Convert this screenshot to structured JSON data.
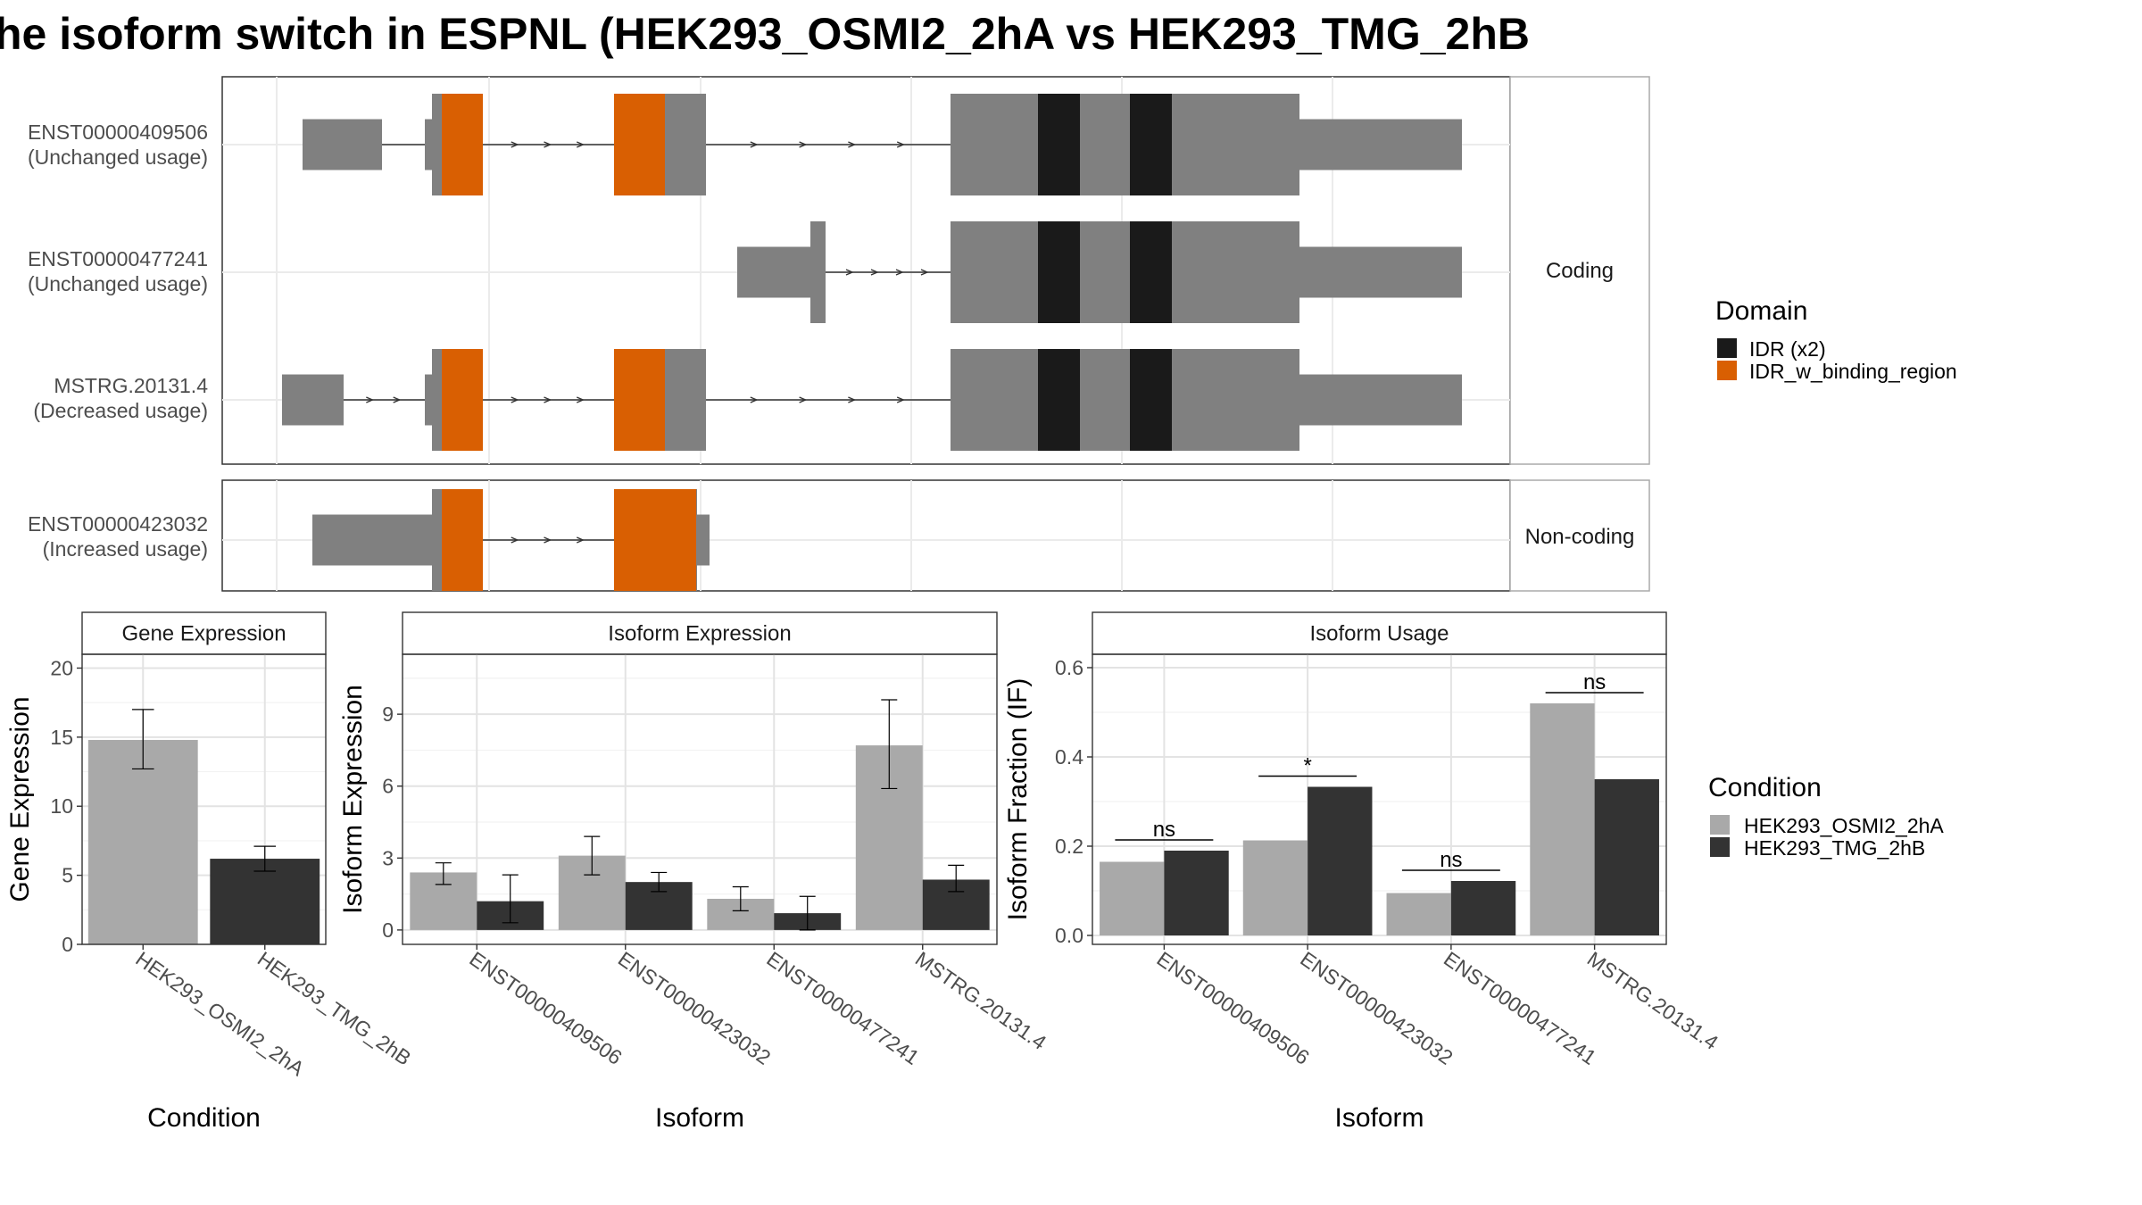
{
  "title": "he isoform switch in ESPNL (HEK293_OSMI2_2hA vs HEK293_TMG_2hB",
  "structure": {
    "facets": [
      {
        "label": "Coding",
        "rows": [
          {
            "id": "ENST00000409506",
            "usage": "(Unchanged usage)"
          },
          {
            "id": "ENST00000477241",
            "usage": "(Unchanged usage)"
          },
          {
            "id": "MSTRG.20131.4",
            "usage": "(Decreased usage)"
          }
        ]
      },
      {
        "label": "Non-coding",
        "rows": [
          {
            "id": "ENST00000423032",
            "usage": "(Increased usage)"
          }
        ]
      }
    ]
  },
  "legend_domain": {
    "title": "Domain",
    "items": [
      {
        "label": "IDR (x2)",
        "color": "#1a1a1a"
      },
      {
        "label": "IDR_w_binding_region",
        "color": "#d95f02"
      }
    ]
  },
  "legend_condition": {
    "title": "Condition",
    "items": [
      {
        "label": "HEK293_OSMI2_2hA",
        "color": "#a9a9a9"
      },
      {
        "label": "HEK293_TMG_2hB",
        "color": "#333333"
      }
    ]
  },
  "chart_data": [
    {
      "type": "bar",
      "title": "Gene Expression",
      "xlabel": "Condition",
      "ylabel": "Gene Expression",
      "ylim": [
        0,
        21
      ],
      "yticks": [
        0,
        5,
        10,
        15,
        20
      ],
      "categories": [
        "HEK293_OSMI2_2hA",
        "HEK293_TMG_2hB"
      ],
      "values": [
        14.8,
        6.2
      ],
      "errors": [
        [
          12.7,
          17.0
        ],
        [
          5.3,
          7.1
        ]
      ],
      "colors": [
        "#a9a9a9",
        "#333333"
      ]
    },
    {
      "type": "bar",
      "title": "Isoform Expression",
      "xlabel": "Isoform",
      "ylabel": "Isoform Expression",
      "ylim": [
        -0.6,
        11.5
      ],
      "yticks": [
        0,
        3,
        6,
        9
      ],
      "categories": [
        "ENST00000409506",
        "ENST00000423032",
        "ENST00000477241",
        "MSTRG.20131.4"
      ],
      "series": [
        {
          "name": "HEK293_OSMI2_2hA",
          "values": [
            2.4,
            3.1,
            1.3,
            7.7
          ],
          "errors": [
            [
              1.9,
              2.8
            ],
            [
              2.3,
              3.9
            ],
            [
              0.8,
              1.8
            ],
            [
              5.9,
              9.6
            ]
          ]
        },
        {
          "name": "HEK293_TMG_2hB",
          "values": [
            1.2,
            2.0,
            0.7,
            2.1
          ],
          "errors": [
            [
              0.3,
              2.3
            ],
            [
              1.6,
              2.4
            ],
            [
              0.0,
              1.4
            ],
            [
              1.6,
              2.7
            ]
          ]
        }
      ]
    },
    {
      "type": "bar",
      "title": "Isoform Usage",
      "xlabel": "Isoform",
      "ylabel": "Isoform Fraction (IF)",
      "ylim": [
        -0.02,
        0.63
      ],
      "yticks": [
        0.0,
        0.2,
        0.4,
        0.6
      ],
      "ytick_labels": [
        "0.0",
        "0.2",
        "0.4",
        "0.6"
      ],
      "categories": [
        "ENST00000409506",
        "ENST00000423032",
        "ENST00000477241",
        "MSTRG.20131.4"
      ],
      "series": [
        {
          "name": "HEK293_OSMI2_2hA",
          "values": [
            0.165,
            0.213,
            0.095,
            0.52
          ]
        },
        {
          "name": "HEK293_TMG_2hB",
          "values": [
            0.19,
            0.333,
            0.122,
            0.35
          ]
        }
      ],
      "significance": [
        "ns",
        "*",
        "ns",
        "ns"
      ]
    }
  ]
}
